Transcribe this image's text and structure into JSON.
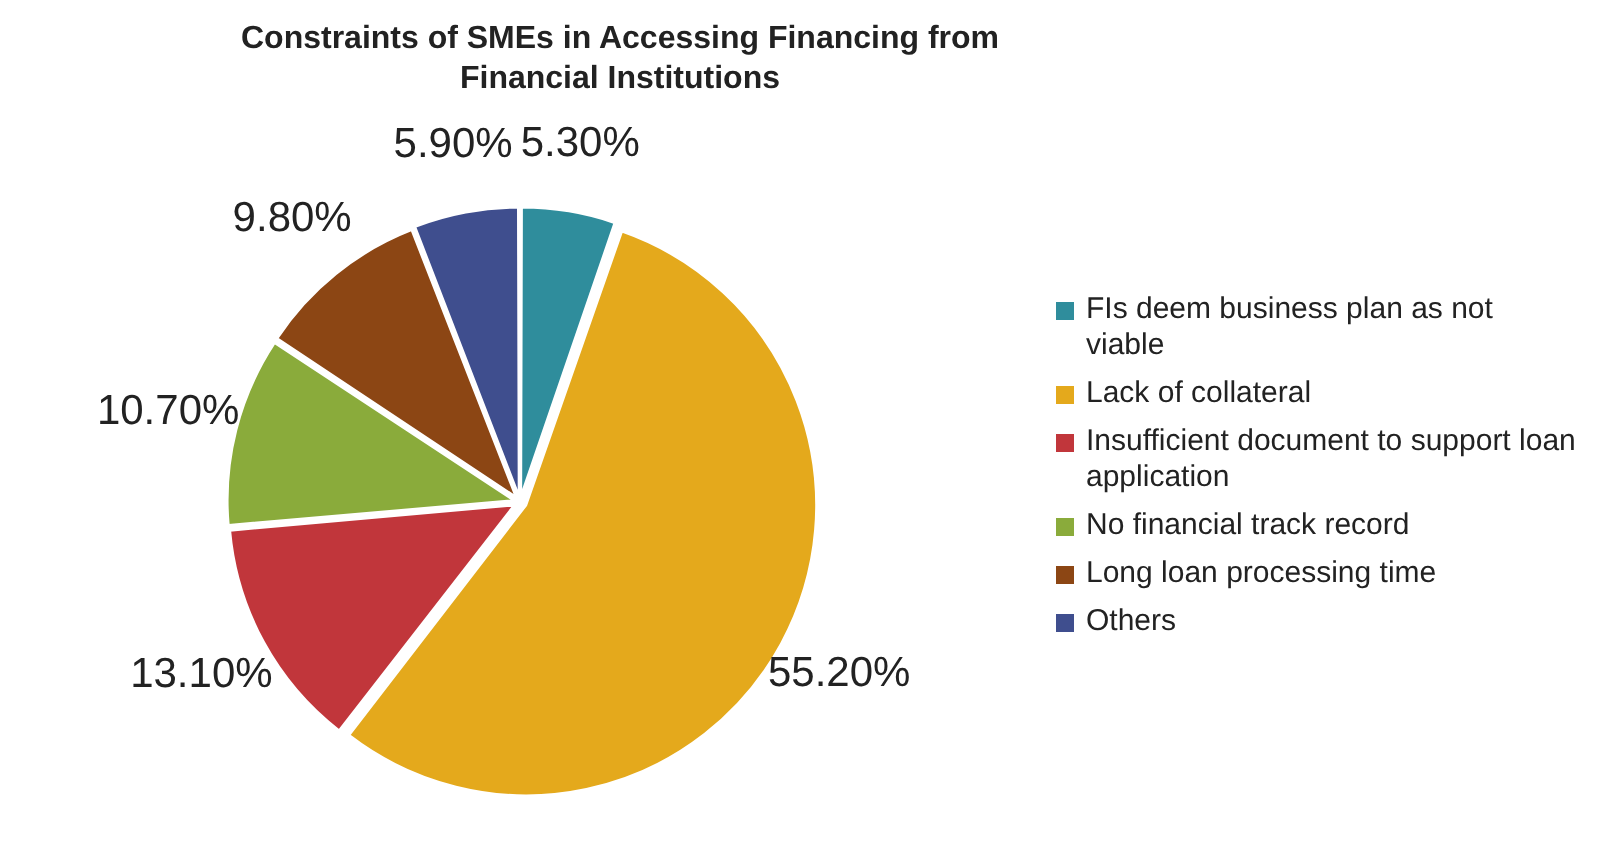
{
  "chart_data": {
    "type": "pie",
    "title": "Constraints of SMEs in Accessing Financing from Financial Institutions",
    "categories": [
      "FIs deem business plan as not viable",
      "Lack of collateral",
      "Insufficient document to support loan application",
      "No financial track record",
      "Long loan processing time",
      "Others"
    ],
    "values": [
      5.3,
      55.2,
      13.1,
      10.7,
      9.8,
      5.9
    ],
    "colors": [
      "#2f8d9c",
      "#e4a91c",
      "#c1363b",
      "#8aab3b",
      "#8c4614",
      "#3f4e8e"
    ],
    "value_labels": [
      "5.30%",
      "55.20%",
      "13.10%",
      "10.70%",
      "9.80%",
      "5.90%"
    ],
    "legend": "right"
  }
}
